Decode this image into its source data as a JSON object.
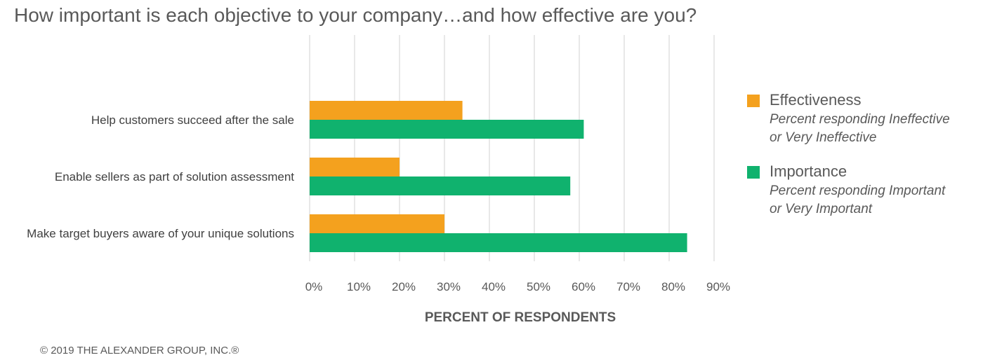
{
  "title": "How important is each objective to your company…and how effective are you?",
  "copyright": "© 2019 THE ALEXANDER GROUP, INC.®",
  "colors": {
    "effectiveness": "#F4A11E",
    "importance": "#10B26E",
    "grid": "#D0D0D0"
  },
  "legend": [
    {
      "name": "Effectiveness",
      "desc1": "Percent responding Ineffective",
      "desc2": "or Very Ineffective"
    },
    {
      "name": "Importance",
      "desc1": "Percent responding Important",
      "desc2": "or Very Important"
    }
  ],
  "chart_data": {
    "type": "bar",
    "orientation": "horizontal",
    "categories": [
      "Help customers succeed after the sale",
      "Enable sellers as part of solution assessment",
      "Make target buyers aware of your unique solutions"
    ],
    "series": [
      {
        "name": "Effectiveness",
        "values": [
          34,
          20,
          30
        ]
      },
      {
        "name": "Importance",
        "values": [
          61,
          58,
          84
        ]
      }
    ],
    "xlabel": "PERCENT OF RESPONDENTS",
    "ylabel": "",
    "xlim": [
      0,
      90
    ],
    "xticks": [
      "0%",
      "10%",
      "20%",
      "30%",
      "40%",
      "50%",
      "60%",
      "70%",
      "80%",
      "90%"
    ],
    "grid": true,
    "legend_position": "right"
  }
}
